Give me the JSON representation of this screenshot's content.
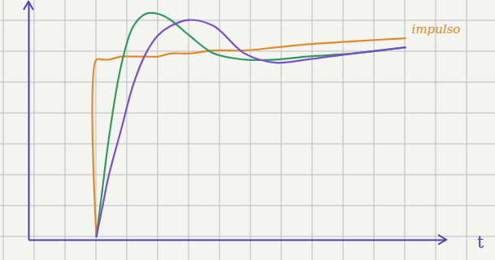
{
  "chart_data": {
    "type": "line",
    "xlabel": "t",
    "x": [
      2.2,
      2.2,
      2.4,
      2.6,
      3.0,
      3.4,
      3.8,
      4.2,
      4.6,
      5.2,
      6.0,
      7.0,
      8.0,
      9.0,
      10.5,
      12.2
    ],
    "xlim": [
      0,
      13.5
    ],
    "ylim": [
      0,
      7.8
    ],
    "tick_labels": false,
    "series": [
      {
        "name": "impulso",
        "color": "#e08a2a",
        "values": [
          0.1,
          5.9,
          5.9,
          5.9,
          6.0,
          6.0,
          6.0,
          6.0,
          6.1,
          6.1,
          6.2,
          6.2,
          6.3,
          6.4,
          6.5,
          6.6
        ]
      },
      {
        "color": "#2e9b5e",
        "values": [
          0.1,
          0.1,
          1.7,
          3.3,
          5.7,
          7.0,
          7.4,
          7.4,
          7.2,
          6.7,
          6.1,
          5.9,
          5.9,
          6.0,
          6.1,
          6.3
        ]
      },
      {
        "color": "#7a4fc9",
        "values": [
          0.1,
          0.1,
          1.1,
          2.1,
          3.6,
          5.1,
          6.1,
          6.7,
          7.0,
          7.2,
          7.0,
          6.1,
          5.8,
          5.9,
          6.1,
          6.3
        ]
      }
    ]
  }
}
